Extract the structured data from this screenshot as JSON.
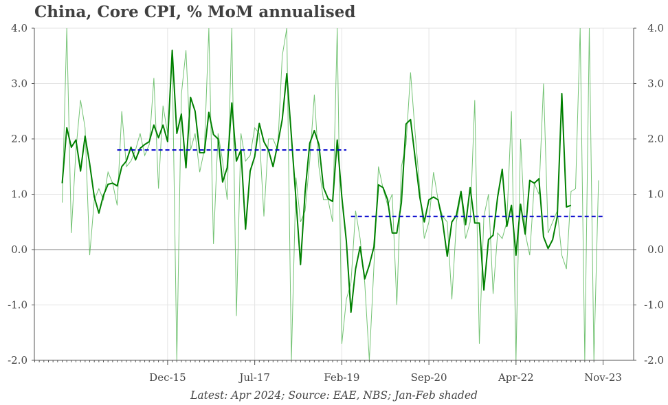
{
  "title": "China, Core CPI, % MoM annualised",
  "footnote": "Latest: Apr 2024; Source: EAE, NBS; Jan-Feb shaded",
  "colors": {
    "headline": "#008000",
    "monthly": "#5cb85c",
    "average": "#0000cc",
    "zero_line": "#9a9a9a",
    "grid": "#e3e3e3",
    "axis": "#555555"
  },
  "chart_data": {
    "type": "line",
    "title": "China, Core CPI, % MoM annualised",
    "xlabel": "",
    "ylabel": "",
    "ylim": [
      -2.0,
      4.0
    ],
    "y_ticks": [
      "-2.0",
      "-1.0",
      "0.0",
      "1.0",
      "2.0",
      "3.0",
      "4.0"
    ],
    "y_tick_values": [
      -2,
      -1,
      0,
      1,
      2,
      3,
      4
    ],
    "x_start": "Jan-14",
    "x_tick_labels": [
      "Dec-15",
      "Jul-17",
      "Feb-19",
      "Sep-20",
      "Apr-22",
      "Nov-23"
    ],
    "x_tick_index": [
      23,
      42,
      61,
      80,
      99,
      118
    ],
    "grid": true,
    "legend": "none",
    "series": [
      {
        "style": "thin",
        "values": [
          0.85,
          4.0,
          0.3,
          1.8,
          2.7,
          2.2,
          -0.1,
          0.9,
          1.1,
          0.9,
          1.4,
          1.2,
          0.8,
          2.5,
          1.5,
          1.6,
          1.8,
          2.1,
          1.7,
          1.9,
          3.1,
          1.1,
          2.6,
          2.1,
          3.5,
          -2.0,
          2.8,
          3.6,
          1.8,
          2.1,
          1.4,
          1.8,
          4.0,
          0.1,
          2.1,
          1.6,
          0.9,
          4.0,
          -1.2,
          2.1,
          1.6,
          1.7,
          2.2,
          2.1,
          0.6,
          2.0,
          2.0,
          1.8,
          3.5,
          4.0,
          -2.0,
          1.3,
          0.5,
          0.7,
          1.6,
          2.8,
          1.5,
          0.9,
          0.9,
          0.5,
          4.0,
          -1.7,
          -0.9,
          -0.6,
          0.7,
          0.2,
          -0.6,
          -2.0,
          -0.3,
          1.5,
          1.1,
          0.8,
          1.0,
          -1.0,
          1.5,
          1.9,
          3.2,
          2.1,
          1.1,
          0.2,
          0.5,
          1.4,
          0.9,
          0.6,
          0.5,
          -0.9,
          0.5,
          1.0,
          0.2,
          0.5,
          2.7,
          -1.7,
          0.6,
          1.0,
          -0.8,
          0.3,
          0.2,
          0.5,
          2.5,
          -2.0,
          2.0,
          0.3,
          -0.1,
          1.2,
          1.0,
          3.0,
          0.3,
          0.5,
          0.7,
          -0.1,
          -0.35,
          1.05,
          1.1,
          4.0,
          -2.0,
          4.0,
          -2.0,
          1.25
        ]
      },
      {
        "style": "thick",
        "values": [
          1.2,
          2.2,
          1.85,
          1.98,
          1.42,
          2.05,
          1.55,
          0.95,
          0.66,
          0.98,
          1.18,
          1.2,
          1.15,
          1.5,
          1.6,
          1.85,
          1.62,
          1.83,
          1.9,
          1.95,
          2.25,
          2.02,
          2.25,
          1.95,
          3.6,
          2.1,
          2.45,
          1.48,
          2.75,
          2.5,
          1.75,
          1.75,
          2.48,
          2.08,
          2.0,
          1.22,
          1.48,
          2.65,
          1.6,
          1.8,
          0.37,
          1.42,
          1.68,
          2.28,
          1.95,
          1.8,
          1.5,
          1.9,
          2.35,
          3.18,
          2.05,
          0.9,
          -0.27,
          1.05,
          1.92,
          2.15,
          1.9,
          1.12,
          0.92,
          0.87,
          1.98,
          0.95,
          0.15,
          -1.13,
          -0.35,
          0.05,
          -0.53,
          -0.28,
          0.05,
          1.17,
          1.12,
          0.9,
          0.3,
          0.3,
          0.85,
          2.27,
          2.35,
          1.65,
          0.95,
          0.5,
          0.9,
          0.95,
          0.9,
          0.5,
          -0.12,
          0.5,
          0.62,
          1.05,
          0.45,
          1.12,
          0.48,
          0.48,
          -0.73,
          0.18,
          0.26,
          0.95,
          1.45,
          0.42,
          0.8,
          -0.1,
          0.82,
          0.28,
          1.25,
          1.2,
          1.28,
          0.23,
          0.02,
          0.18,
          0.6,
          2.82,
          0.77,
          0.8
        ]
      },
      {
        "style": "dashed",
        "name": "avg-2016-2019",
        "segment_index": [
          12,
          62
        ],
        "value": 1.8
      },
      {
        "style": "dashed",
        "name": "avg-2020-2024",
        "segment_index": [
          63,
          118
        ],
        "value": 0.6
      }
    ]
  }
}
